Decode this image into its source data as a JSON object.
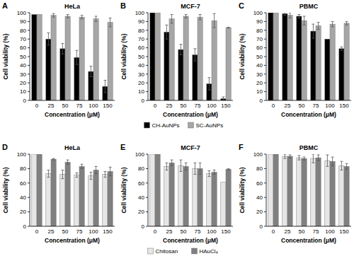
{
  "chart_data": [
    {
      "type": "bar",
      "panel": "A",
      "title": "HeLa",
      "x_label": "Concentration (μM)",
      "y_label": "Cell viability (%)",
      "categories": [
        "0",
        "25",
        "50",
        "75",
        "100",
        "150"
      ],
      "series": [
        {
          "name": "CH-AuNPs",
          "color": "#000000",
          "values": [
            98,
            70,
            59,
            49,
            33,
            16
          ],
          "errors": [
            0,
            7,
            6,
            8,
            6,
            7
          ]
        },
        {
          "name": "SC-AuNPs",
          "color": "#a6a6a6",
          "values": [
            98,
            97,
            96,
            95,
            93,
            89
          ],
          "errors": [
            0,
            2,
            2,
            2,
            3,
            5
          ]
        }
      ],
      "ylim": [
        0,
        100
      ],
      "yticks": [
        0,
        10,
        20,
        30,
        40,
        50,
        60,
        70,
        80,
        90,
        100
      ]
    },
    {
      "type": "bar",
      "panel": "B",
      "title": "MCF-7",
      "x_label": "Concentration (μM)",
      "y_label": "Cell viability (%)",
      "categories": [
        "0",
        "25",
        "50",
        "75",
        "100",
        "150"
      ],
      "series": [
        {
          "name": "CH-AuNPs",
          "color": "#000000",
          "values": [
            100,
            78,
            58,
            52,
            19,
            2
          ],
          "errors": [
            0,
            8,
            6,
            7,
            7,
            2
          ]
        },
        {
          "name": "SC-AuNPs",
          "color": "#a6a6a6",
          "values": [
            100,
            93,
            96,
            95,
            91,
            83
          ],
          "errors": [
            0,
            5,
            2,
            3,
            8,
            0.5
          ]
        }
      ],
      "ylim": [
        0,
        100
      ],
      "yticks": [
        0,
        10,
        20,
        30,
        40,
        50,
        60,
        70,
        80,
        90,
        100
      ],
      "legend": "bottom"
    },
    {
      "type": "bar",
      "panel": "C",
      "title": "PBMC",
      "x_label": "Concentration (μM)",
      "y_label": "Cell viability (%)",
      "categories": [
        "0",
        "25",
        "50",
        "75",
        "100",
        "150"
      ],
      "series": [
        {
          "name": "CH-AuNPs",
          "color": "#000000",
          "values": [
            100,
            99,
            96,
            79,
            70,
            59
          ],
          "errors": [
            0,
            2,
            2,
            8,
            0,
            2
          ]
        },
        {
          "name": "SC-AuNPs",
          "color": "#a6a6a6",
          "values": [
            100,
            97,
            91,
            85,
            87,
            88
          ],
          "errors": [
            0,
            3,
            5,
            4,
            3,
            2
          ]
        }
      ],
      "ylim": [
        0,
        100
      ],
      "yticks": [
        0,
        10,
        20,
        30,
        40,
        50,
        60,
        70,
        80,
        90,
        100
      ]
    },
    {
      "type": "bar",
      "panel": "D",
      "title": "HeLa",
      "x_label": "Concentration (μM)",
      "y_label": "Cell viability (%)",
      "categories": [
        "0",
        "25",
        "50",
        "75",
        "100",
        "150"
      ],
      "series": [
        {
          "name": "Chitosan",
          "color": "#e6e6e6",
          "values": [
            100,
            73,
            72,
            71,
            70,
            72
          ],
          "errors": [
            0,
            5,
            6,
            3,
            5,
            4
          ]
        },
        {
          "name": "HAuCl₄",
          "color": "#808080",
          "values": [
            100,
            93,
            89,
            83,
            78,
            76
          ],
          "errors": [
            0,
            1,
            3,
            3,
            5,
            6
          ]
        }
      ],
      "ylim": [
        0,
        100
      ],
      "yticks": [
        0,
        20,
        40,
        60,
        80,
        100
      ]
    },
    {
      "type": "bar",
      "panel": "E",
      "title": "MCF-7",
      "x_label": "Concentration (μM)",
      "y_label": "Cell viability (%)",
      "categories": [
        "0",
        "25",
        "50",
        "75",
        "100",
        "150"
      ],
      "series": [
        {
          "name": "Chitosan",
          "color": "#e6e6e6",
          "values": [
            100,
            83,
            84,
            80,
            73,
            61
          ],
          "errors": [
            0,
            5,
            8,
            8,
            4,
            0
          ]
        },
        {
          "name": "HAuCl₄",
          "color": "#808080",
          "values": [
            100,
            88,
            83,
            80,
            75,
            79
          ],
          "errors": [
            0,
            4,
            5,
            8,
            3,
            1
          ]
        }
      ],
      "ylim": [
        0,
        100
      ],
      "yticks": [
        0,
        20,
        40,
        60,
        80,
        100
      ],
      "legend": "bottom"
    },
    {
      "type": "bar",
      "panel": "F",
      "title": "PBMC",
      "x_label": "Concentration (μM)",
      "y_label": "Cell viability (%)",
      "categories": [
        "0",
        "25",
        "50",
        "75",
        "100",
        "150"
      ],
      "series": [
        {
          "name": "Chitosan",
          "color": "#e6e6e6",
          "values": [
            100,
            97,
            95,
            94,
            91,
            84
          ],
          "errors": [
            0,
            3,
            3,
            6,
            8,
            6
          ]
        },
        {
          "name": "HAuCl₄",
          "color": "#808080",
          "values": [
            100,
            97,
            94,
            95,
            90,
            83
          ],
          "errors": [
            0,
            2,
            2,
            4,
            6,
            4
          ]
        }
      ],
      "ylim": [
        0,
        100
      ],
      "yticks": [
        0,
        20,
        40,
        60,
        80,
        100
      ]
    }
  ]
}
